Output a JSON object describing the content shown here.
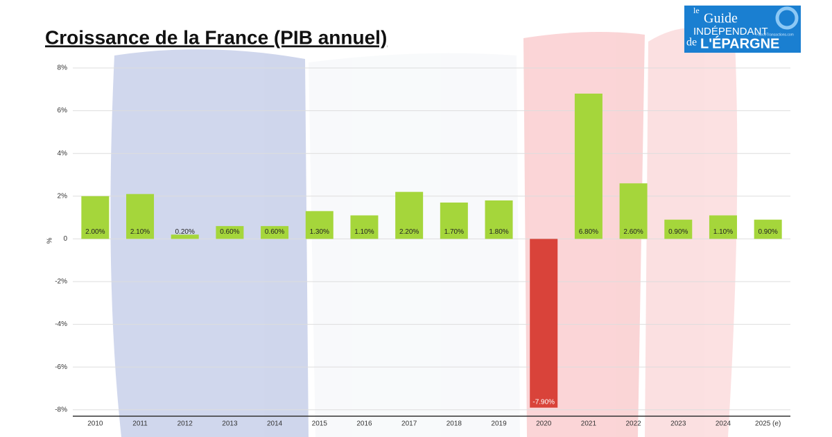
{
  "chart_data": {
    "type": "bar",
    "title": "Croissance de la France (PIB annuel)",
    "ylabel": "%",
    "categories": [
      "2010",
      "2011",
      "2012",
      "2013",
      "2014",
      "2015",
      "2016",
      "2017",
      "2018",
      "2019",
      "2020",
      "2021",
      "2022",
      "2023",
      "2024",
      "2025 (e)"
    ],
    "values": [
      2.0,
      2.1,
      0.2,
      0.6,
      0.6,
      1.3,
      1.1,
      2.2,
      1.7,
      1.8,
      -7.9,
      6.8,
      2.6,
      0.9,
      1.1,
      0.9
    ],
    "value_labels": [
      "2.00%",
      "2.10%",
      "0.20%",
      "0.60%",
      "0.60%",
      "1.30%",
      "1.10%",
      "2.20%",
      "1.70%",
      "1.80%",
      "-7.90%",
      "6.80%",
      "2.60%",
      "0.90%",
      "1.10%",
      "0.90%"
    ],
    "color": "#a5d63b",
    "negative_color": "#d9433a",
    "ylim": [
      -8.3,
      8
    ],
    "yticks": [
      {
        "value": 8,
        "label": "8%"
      },
      {
        "value": 6,
        "label": "6%"
      },
      {
        "value": 4,
        "label": "4%"
      },
      {
        "value": 2,
        "label": "2%"
      },
      0,
      {
        "value": -2,
        "label": "-2%"
      },
      {
        "value": -4,
        "label": "-4%"
      },
      {
        "value": -6,
        "label": "-6%"
      },
      {
        "value": -8,
        "label": "-8%"
      }
    ],
    "grid": true
  },
  "logo": {
    "le": "le",
    "guide": "Guide",
    "independant": "INDÉPENDANT",
    "de": "de",
    "epargne": "L'ÉPARGNE",
    "site": "FranceTransactions.com"
  }
}
